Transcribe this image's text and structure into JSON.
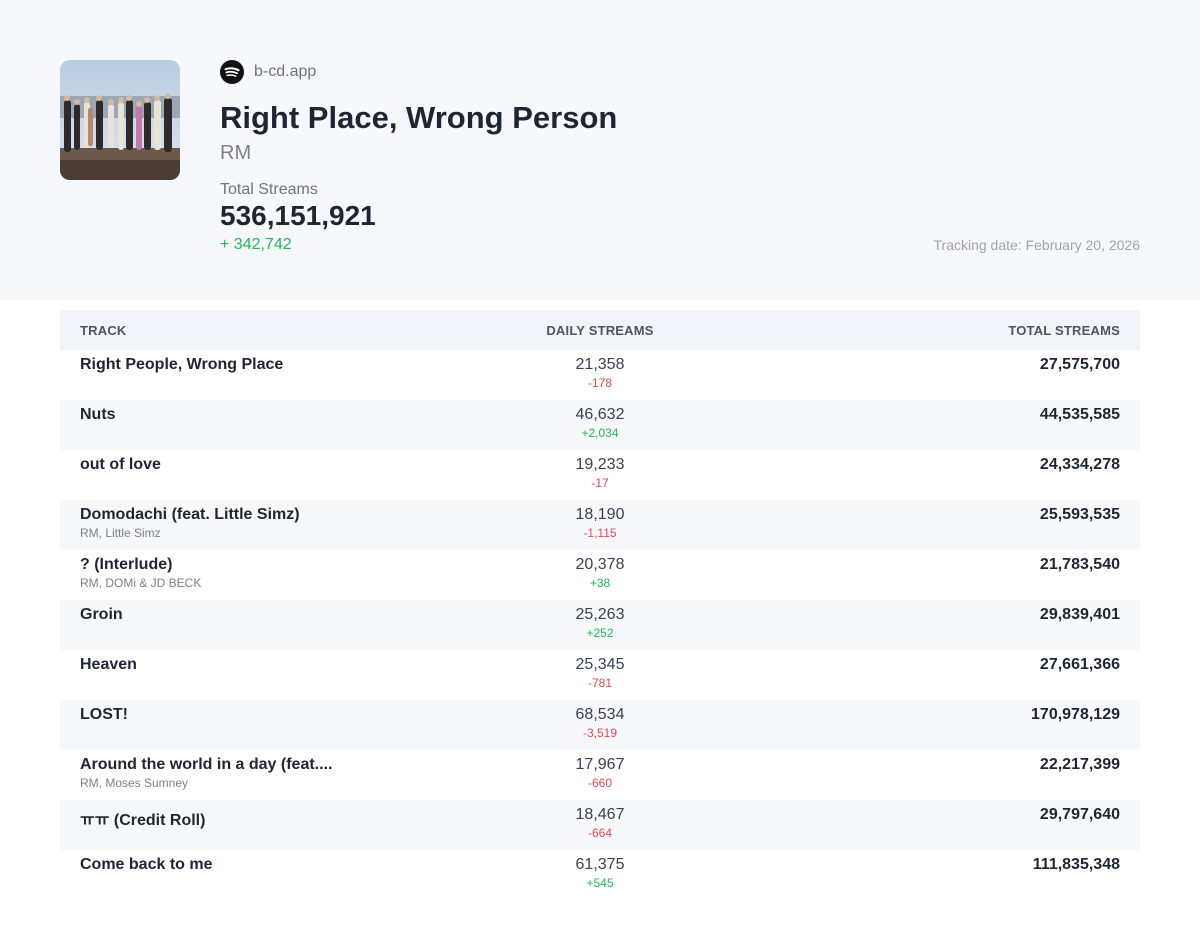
{
  "header": {
    "source_domain": "b-cd.app",
    "album_title": "Right Place, Wrong Person",
    "artist": "RM",
    "total_label": "Total Streams",
    "total_value": "536,151,921",
    "total_delta": "+ 342,742",
    "tracking_date": "Tracking date: February 20, 2026",
    "source_icon": "spotify-icon",
    "accent_color": "#1db954",
    "negative_color": "#e5484d"
  },
  "table": {
    "columns": {
      "track": "TRACK",
      "daily": "DAILY STREAMS",
      "total": "TOTAL STREAMS"
    },
    "rows": [
      {
        "track": "Right People, Wrong Place",
        "artists": "",
        "daily": "21,358",
        "delta": "-178",
        "total": "27,575,700"
      },
      {
        "track": "Nuts",
        "artists": "",
        "daily": "46,632",
        "delta": "+2,034",
        "total": "44,535,585"
      },
      {
        "track": "out of love",
        "artists": "",
        "daily": "19,233",
        "delta": "-17",
        "total": "24,334,278"
      },
      {
        "track": "Domodachi (feat. Little Simz)",
        "artists": "RM, Little Simz",
        "daily": "18,190",
        "delta": "-1,115",
        "total": "25,593,535"
      },
      {
        "track": "? (Interlude)",
        "artists": "RM, DOMi & JD BECK",
        "daily": "20,378",
        "delta": "+38",
        "total": "21,783,540"
      },
      {
        "track": "Groin",
        "artists": "",
        "daily": "25,263",
        "delta": "+252",
        "total": "29,839,401"
      },
      {
        "track": "Heaven",
        "artists": "",
        "daily": "25,345",
        "delta": "-781",
        "total": "27,661,366"
      },
      {
        "track": "LOST!",
        "artists": "",
        "daily": "68,534",
        "delta": "-3,519",
        "total": "170,978,129"
      },
      {
        "track": "Around the world in a day (feat....",
        "artists": "RM, Moses Sumney",
        "daily": "17,967",
        "delta": "-660",
        "total": "22,217,399"
      },
      {
        "track": "ㅠㅠ (Credit Roll)",
        "artists": "",
        "daily": "18,467",
        "delta": "-664",
        "total": "29,797,640"
      },
      {
        "track": "Come back to me",
        "artists": "",
        "daily": "61,375",
        "delta": "+545",
        "total": "111,835,348"
      }
    ]
  }
}
